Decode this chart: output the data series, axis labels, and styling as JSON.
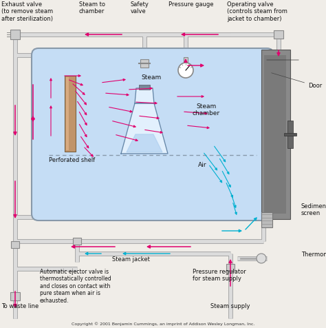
{
  "background_color": "#f0ede8",
  "chamber_color": "#c5ddf5",
  "steam_arrow_color": "#e0006e",
  "air_arrow_color": "#00b0d0",
  "pipe_color": "#d0d0d0",
  "pipe_edge": "#aaaaaa",
  "door_color": "#909090",
  "text_color": "#111111",
  "label_fontsize": 6.0,
  "copyright": "Copyright © 2001 Benjamin Cummings, an imprint of Addison Wesley Longman, Inc.",
  "labels": {
    "exhaust_valve": "Exhaust valve\n(to remove steam\nafter sterilization)",
    "steam_to_chamber": "Steam to\nchamber",
    "safety_valve": "Safety\nvalve",
    "pressure_gauge": "Pressure gauge",
    "operating_valve": "Operating valve\n(controls steam from\njacket to chamber)",
    "steam_label": "Steam",
    "steam_chamber": "Steam\nchamber",
    "air_label": "Air",
    "perforated_shelf": "Perforated shelf",
    "steam_jacket": "Steam jacket",
    "sediment_screen": "Sediment\nscreen",
    "thermometer": "Thermometer",
    "door": "Door",
    "ejector": "Automatic ejector valve is\nthermostatically controlled\nand closes on contact with\npure steam when air is\nexhausted.",
    "pressure_regulator": "Pressure regulator\nfor steam supply",
    "steam_supply": "Steam supply",
    "waste_line": "To waste line"
  }
}
